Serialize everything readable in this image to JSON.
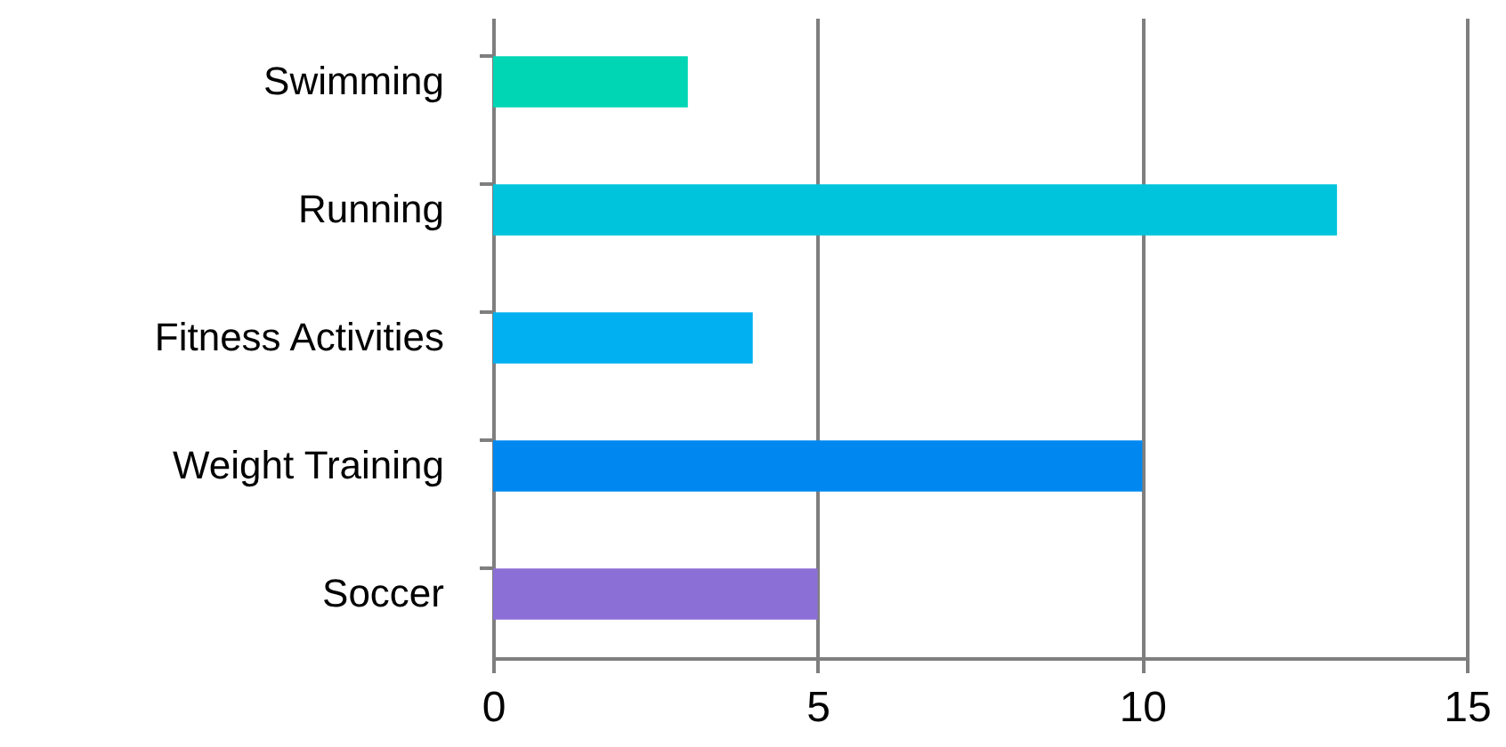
{
  "chart_data": {
    "type": "bar",
    "orientation": "horizontal",
    "categories": [
      "Swimming",
      "Running",
      "Fitness Activities",
      "Weight Training",
      "Soccer"
    ],
    "values": [
      3,
      13,
      4,
      10,
      5
    ],
    "colors": [
      "#00d6b4",
      "#00c4dc",
      "#00b0f0",
      "#0088f0",
      "#8c6fd6"
    ],
    "xlim": [
      0,
      15
    ],
    "xticks": [
      0,
      5,
      10,
      15
    ],
    "grid": "x"
  }
}
